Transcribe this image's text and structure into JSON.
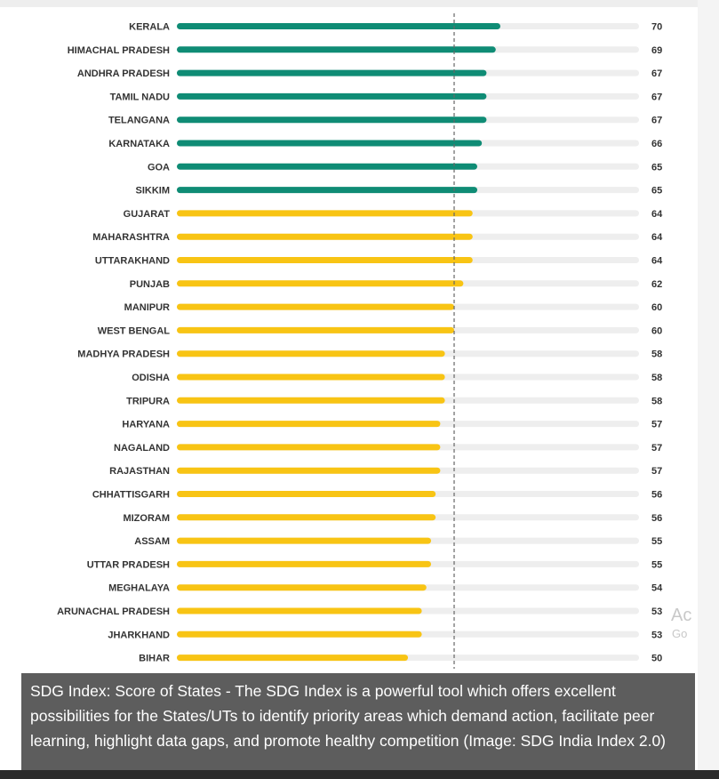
{
  "chart_data": {
    "type": "bar",
    "orientation": "horizontal",
    "categories": [
      "KERALA",
      "HIMACHAL PRADESH",
      "ANDHRA PRADESH",
      "TAMIL NADU",
      "TELANGANA",
      "KARNATAKA",
      "GOA",
      "SIKKIM",
      "GUJARAT",
      "MAHARASHTRA",
      "UTTARAKHAND",
      "PUNJAB",
      "MANIPUR",
      "WEST BENGAL",
      "MADHYA PRADESH",
      "ODISHA",
      "TRIPURA",
      "HARYANA",
      "NAGALAND",
      "RAJASTHAN",
      "CHHATTISGARH",
      "MIZORAM",
      "ASSAM",
      "UTTAR PRADESH",
      "MEGHALAYA",
      "ARUNACHAL PRADESH",
      "JHARKHAND",
      "BIHAR"
    ],
    "values": [
      70,
      69,
      67,
      67,
      67,
      66,
      65,
      65,
      64,
      64,
      64,
      62,
      60,
      60,
      58,
      58,
      58,
      57,
      57,
      57,
      56,
      56,
      55,
      55,
      54,
      53,
      53,
      50
    ],
    "value_labels": [
      "70",
      "69",
      "67",
      "67",
      "67",
      "66",
      "65",
      "65",
      "64",
      "64",
      "64",
      "62",
      "60",
      "60",
      "58",
      "58",
      "58",
      "57",
      "57",
      "57",
      "56",
      "56",
      "55",
      "55",
      "54",
      "53",
      "53",
      "50"
    ],
    "reference_line": 60,
    "xlim": [
      0,
      100
    ],
    "colors": {
      "front_runner": "#0f8c75",
      "performer": "#f8c414",
      "track": "#eeeeee",
      "reference": "#666666"
    },
    "front_runner_threshold": 65,
    "title": "",
    "xlabel": "",
    "ylabel": ""
  },
  "watermark": {
    "line1": "Ac",
    "line2": "Go"
  },
  "caption": "SDG Index: Score of States - The SDG Index is a powerful tool which offers excellent possibilities for the States/UTs to identify priority areas which demand action, facilitate peer learning, highlight data gaps, and promote healthy competition (Image: SDG India Index 2.0)"
}
